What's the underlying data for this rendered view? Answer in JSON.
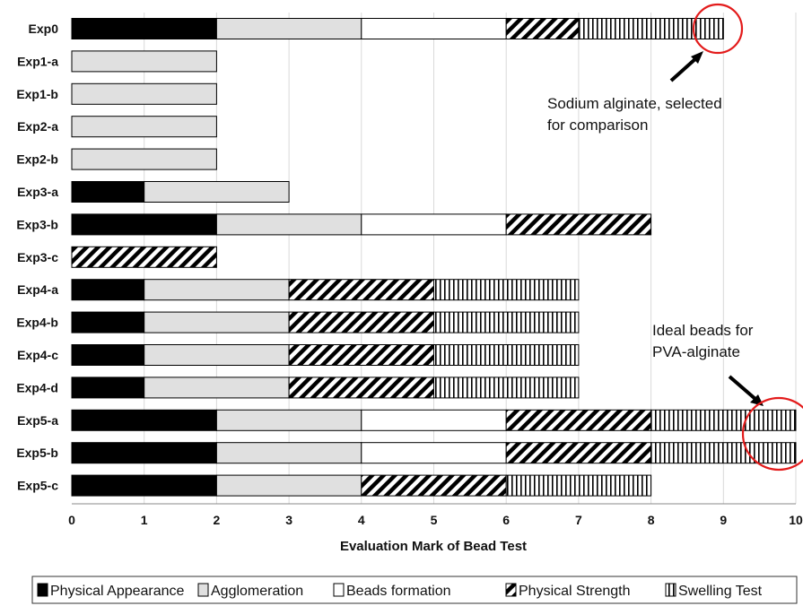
{
  "chart_data": {
    "type": "bar",
    "orientation": "horizontal",
    "stacked": true,
    "categories": [
      "Exp0",
      "Exp1-a",
      "Exp1-b",
      "Exp2-a",
      "Exp2-b",
      "Exp3-a",
      "Exp3-b",
      "Exp3-c",
      "Exp4-a",
      "Exp4-b",
      "Exp4-c",
      "Exp4-d",
      "Exp5-a",
      "Exp5-b",
      "Exp5-c"
    ],
    "series": [
      {
        "name": "Physical Appearance",
        "pattern": "solid-black",
        "values": [
          2,
          0,
          0,
          0,
          0,
          1,
          2,
          0,
          1,
          1,
          1,
          1,
          2,
          2,
          2
        ]
      },
      {
        "name": "Agglomeration",
        "pattern": "light-gray",
        "values": [
          2,
          2,
          2,
          2,
          2,
          2,
          2,
          0,
          2,
          2,
          2,
          2,
          2,
          2,
          2
        ]
      },
      {
        "name": "Beads formation",
        "pattern": "white",
        "values": [
          2,
          0,
          0,
          0,
          0,
          0,
          2,
          0,
          0,
          0,
          0,
          0,
          2,
          2,
          0
        ]
      },
      {
        "name": "Physical Strength",
        "pattern": "diagonal-hatch",
        "values": [
          1,
          0,
          0,
          0,
          0,
          0,
          2,
          2,
          2,
          2,
          2,
          2,
          2,
          2,
          2
        ]
      },
      {
        "name": "Swelling Test",
        "pattern": "vertical-lines",
        "values": [
          2,
          0,
          0,
          0,
          0,
          0,
          0,
          0,
          2,
          2,
          2,
          2,
          2,
          2,
          2
        ]
      }
    ],
    "xlabel": "Evaluation Mark of Bead Test",
    "ylabel": "",
    "xlim": [
      0,
      10
    ],
    "xticks": [
      "0",
      "1",
      "2",
      "3",
      "4",
      "5",
      "6",
      "7",
      "8",
      "9",
      "10"
    ],
    "grid": "vertical",
    "legend": "bottom",
    "annotations": [
      {
        "text_lines": [
          "Sodium alginate, selected",
          "for comparison"
        ],
        "target": "Exp0",
        "marker": "red-circle"
      },
      {
        "text_lines": [
          "Ideal beads for",
          "PVA-alginate"
        ],
        "target": "Exp5-a, Exp5-b",
        "marker": "red-circle"
      }
    ],
    "colors": {
      "highlight_circle": "#e31b1b",
      "bar_fill_dark": "#000000",
      "bar_fill_light": "#e0e0e0",
      "grid": "#d9d9d9"
    }
  }
}
